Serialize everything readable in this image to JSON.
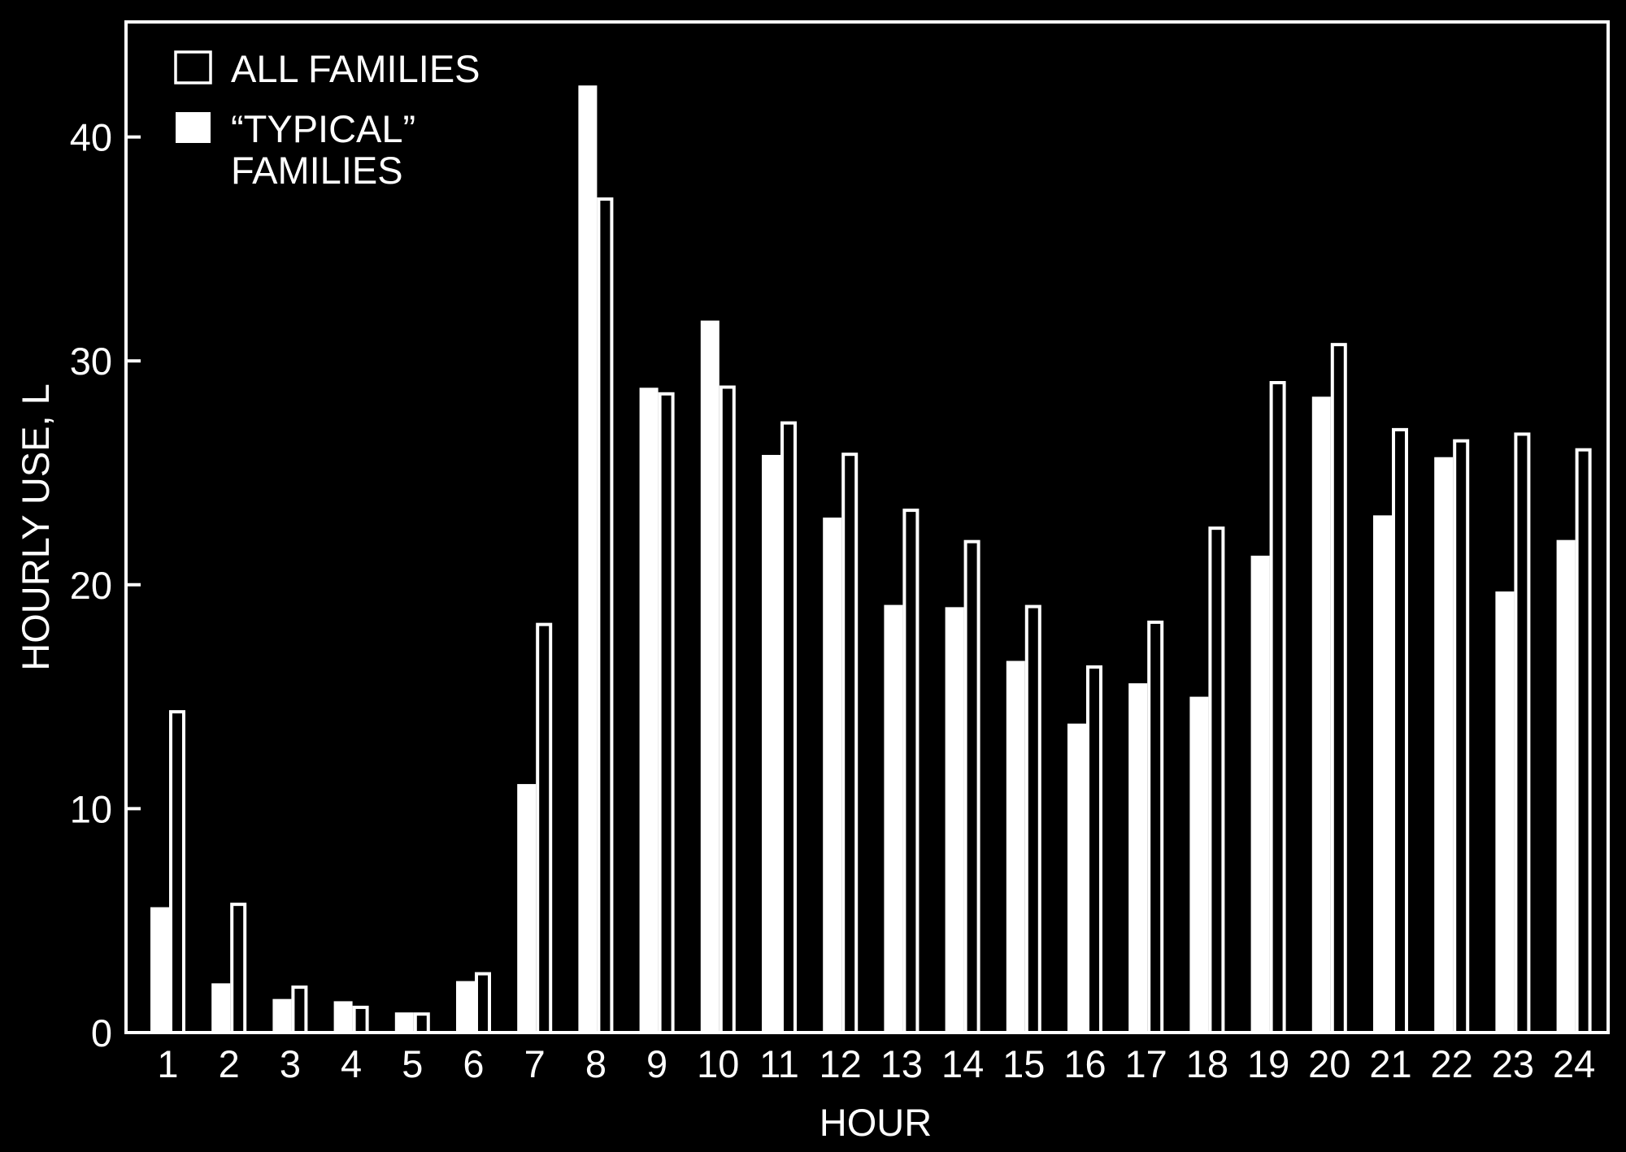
{
  "colors": {
    "background": "#000000",
    "foreground": "#ffffff"
  },
  "legend": {
    "all_families": "ALL FAMILIES",
    "typical_line1": "“TYPICAL”",
    "typical_line2": "FAMILIES"
  },
  "chart_data": {
    "type": "bar",
    "title": "",
    "xlabel": "HOUR",
    "ylabel": "HOURLY USE, L",
    "ylim": [
      0,
      45
    ],
    "yticks": [
      0,
      10,
      20,
      30,
      40
    ],
    "grid": false,
    "legend_position": "top-left",
    "categories": [
      "1",
      "2",
      "3",
      "4",
      "5",
      "6",
      "7",
      "8",
      "9",
      "10",
      "11",
      "12",
      "13",
      "14",
      "15",
      "16",
      "17",
      "18",
      "19",
      "20",
      "21",
      "22",
      "23",
      "24"
    ],
    "series": [
      {
        "name": "“TYPICAL” FAMILIES",
        "style": "filled",
        "values": [
          5.6,
          2.2,
          1.5,
          1.4,
          0.9,
          2.3,
          11.1,
          42.3,
          28.8,
          31.8,
          25.8,
          23.0,
          19.1,
          19.0,
          16.6,
          13.8,
          15.6,
          15.0,
          21.3,
          28.4,
          23.1,
          25.7,
          19.7,
          22.0
        ]
      },
      {
        "name": "ALL FAMILIES",
        "style": "outline",
        "values": [
          14.4,
          5.8,
          2.1,
          1.2,
          0.9,
          2.7,
          18.3,
          37.3,
          28.6,
          28.9,
          27.3,
          25.9,
          23.4,
          22.0,
          19.1,
          16.4,
          18.4,
          22.6,
          29.1,
          30.8,
          27.0,
          26.5,
          26.8,
          26.1
        ]
      }
    ]
  }
}
